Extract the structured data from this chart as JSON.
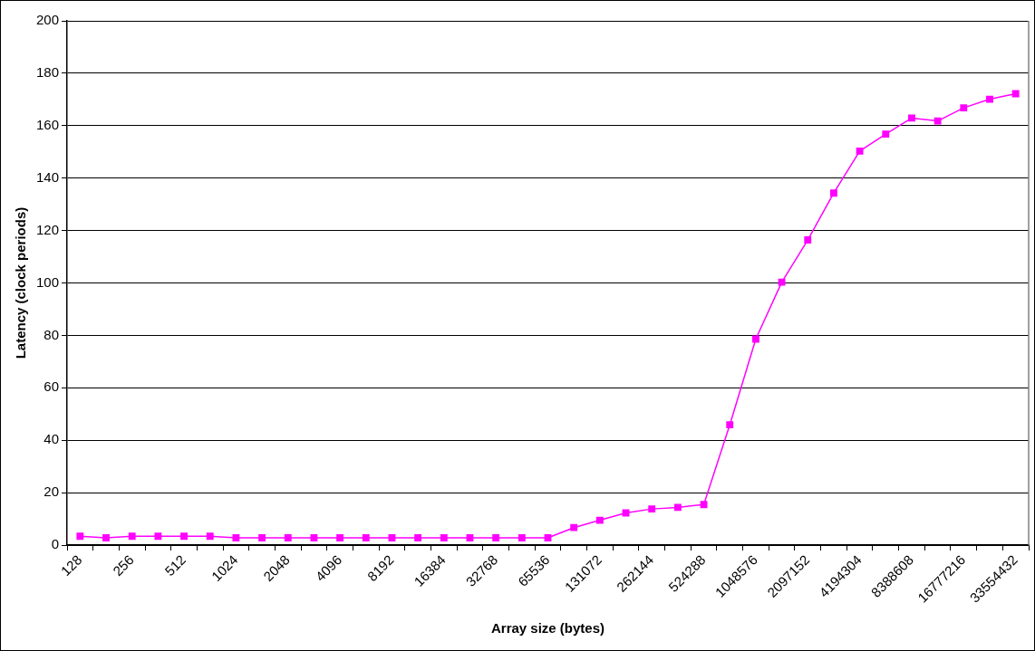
{
  "chart_data": {
    "type": "line",
    "xlabel": "Array size (bytes)",
    "ylabel": "Latency (clock periods)",
    "categories": [
      "128",
      null,
      "256",
      null,
      "512",
      null,
      "1024",
      null,
      "2048",
      null,
      "4096",
      null,
      "8192",
      null,
      "16384",
      null,
      "32768",
      null,
      "65536",
      null,
      "131072",
      null,
      "262144",
      null,
      "524288",
      null,
      "1048576",
      null,
      "2097152",
      null,
      "4194304",
      null,
      "8388608",
      null,
      "16777216",
      null,
      "33554432"
    ],
    "series": [
      {
        "color": "#ff00ff",
        "values": [
          3.4,
          2.8,
          3.4,
          3.4,
          3.4,
          3.4,
          2.8,
          2.8,
          2.8,
          2.8,
          2.8,
          2.8,
          2.8,
          2.8,
          2.8,
          2.8,
          2.8,
          2.8,
          2.8,
          6.7,
          9.5,
          12.3,
          13.8,
          14.4,
          15.5,
          45.9,
          78.6,
          100.3,
          116.4,
          134.3,
          150.3,
          156.8,
          162.9,
          161.8,
          166.8,
          170.1,
          172.2
        ]
      }
    ],
    "ylim": [
      0,
      200
    ],
    "yticks": [
      0,
      20,
      40,
      60,
      80,
      100,
      120,
      140,
      160,
      180,
      200
    ],
    "grid": "y",
    "legend": false,
    "marker": "square",
    "line_style": "solid"
  }
}
